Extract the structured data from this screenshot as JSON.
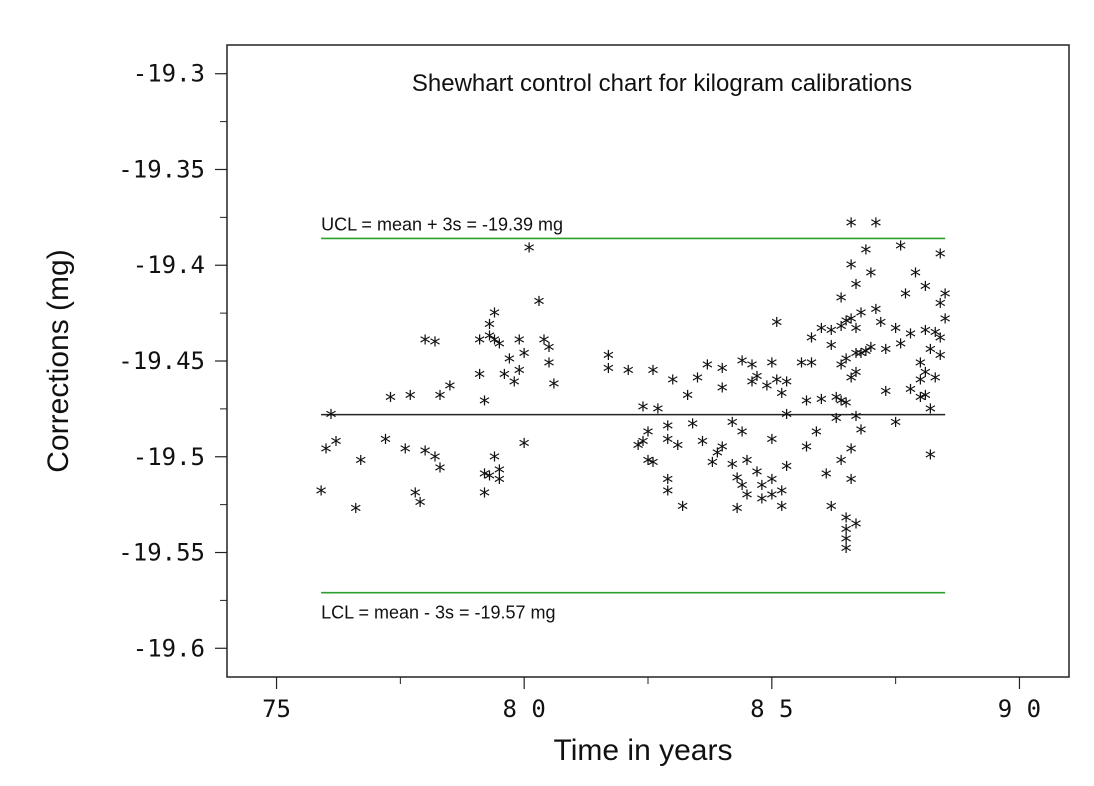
{
  "chart_data": {
    "type": "scatter",
    "title": "Shewhart control chart for kilogram calibrations",
    "xlabel": "Time in years",
    "ylabel": "Corrections (mg)",
    "xlim": [
      74,
      91
    ],
    "ylim": [
      -19.615,
      -19.285
    ],
    "x_ticks": [
      75,
      80,
      85,
      90
    ],
    "x_tick_labels": [
      "75",
      "8 0",
      "8 5",
      "9 0"
    ],
    "y_ticks": [
      -19.3,
      -19.35,
      -19.4,
      -19.45,
      -19.5,
      -19.55,
      -19.6
    ],
    "y_tick_labels": [
      "-19.3",
      "-19.35",
      "-19.4",
      "-19.45",
      "-19.5",
      "-19.55",
      "-19.6"
    ],
    "grid": false,
    "marker": "*",
    "colors": {
      "limits": "#2ca02c",
      "center": "#222222",
      "points": "#111111",
      "frame": "#222222"
    },
    "lines": [
      {
        "name": "UCL",
        "label": "UCL = mean + 3s = -19.39 mg",
        "y": -19.386,
        "x": [
          75.9,
          88.5
        ]
      },
      {
        "name": "center",
        "label": "",
        "y": -19.478,
        "x": [
          75.9,
          88.5
        ]
      },
      {
        "name": "LCL",
        "label": "LCL = mean - 3s = -19.57 mg",
        "y": -19.571,
        "x": [
          75.9,
          88.5
        ]
      }
    ],
    "points": [
      [
        75.9,
        -19.518
      ],
      [
        76.0,
        -19.496
      ],
      [
        76.1,
        -19.478
      ],
      [
        76.2,
        -19.492
      ],
      [
        76.6,
        -19.527
      ],
      [
        76.7,
        -19.502
      ],
      [
        77.2,
        -19.491
      ],
      [
        77.3,
        -19.469
      ],
      [
        77.6,
        -19.496
      ],
      [
        77.7,
        -19.468
      ],
      [
        77.8,
        -19.519
      ],
      [
        77.9,
        -19.524
      ],
      [
        78.0,
        -19.439
      ],
      [
        78.0,
        -19.497
      ],
      [
        78.2,
        -19.5
      ],
      [
        78.2,
        -19.44
      ],
      [
        78.3,
        -19.506
      ],
      [
        78.3,
        -19.468
      ],
      [
        78.5,
        -19.463
      ],
      [
        79.1,
        -19.439
      ],
      [
        79.1,
        -19.457
      ],
      [
        79.2,
        -19.471
      ],
      [
        79.2,
        -19.509
      ],
      [
        79.2,
        -19.519
      ],
      [
        79.3,
        -19.431
      ],
      [
        79.3,
        -19.437
      ],
      [
        79.3,
        -19.51
      ],
      [
        79.4,
        -19.425
      ],
      [
        79.4,
        -19.439
      ],
      [
        79.4,
        -19.5
      ],
      [
        79.5,
        -19.441
      ],
      [
        79.5,
        -19.507
      ],
      [
        79.5,
        -19.512
      ],
      [
        79.6,
        -19.457
      ],
      [
        79.7,
        -19.449
      ],
      [
        79.8,
        -19.461
      ],
      [
        79.9,
        -19.455
      ],
      [
        79.9,
        -19.439
      ],
      [
        80.0,
        -19.493
      ],
      [
        80.0,
        -19.446
      ],
      [
        80.1,
        -19.391
      ],
      [
        80.3,
        -19.419
      ],
      [
        80.4,
        -19.439
      ],
      [
        80.5,
        -19.443
      ],
      [
        80.5,
        -19.451
      ],
      [
        80.6,
        -19.462
      ],
      [
        81.7,
        -19.447
      ],
      [
        81.7,
        -19.454
      ],
      [
        82.1,
        -19.455
      ],
      [
        82.3,
        -19.494
      ],
      [
        82.4,
        -19.474
      ],
      [
        82.4,
        -19.492
      ],
      [
        82.5,
        -19.487
      ],
      [
        82.5,
        -19.502
      ],
      [
        82.6,
        -19.503
      ],
      [
        82.6,
        -19.455
      ],
      [
        82.7,
        -19.475
      ],
      [
        82.9,
        -19.484
      ],
      [
        82.9,
        -19.491
      ],
      [
        82.9,
        -19.512
      ],
      [
        82.9,
        -19.518
      ],
      [
        83.0,
        -19.46
      ],
      [
        83.1,
        -19.494
      ],
      [
        83.2,
        -19.526
      ],
      [
        83.3,
        -19.468
      ],
      [
        83.4,
        -19.483
      ],
      [
        83.5,
        -19.459
      ],
      [
        83.6,
        -19.492
      ],
      [
        83.7,
        -19.452
      ],
      [
        83.8,
        -19.503
      ],
      [
        83.9,
        -19.498
      ],
      [
        84.0,
        -19.464
      ],
      [
        84.0,
        -19.495
      ],
      [
        84.0,
        -19.454
      ],
      [
        84.2,
        -19.482
      ],
      [
        84.2,
        -19.504
      ],
      [
        84.3,
        -19.511
      ],
      [
        84.3,
        -19.527
      ],
      [
        84.4,
        -19.515
      ],
      [
        84.4,
        -19.487
      ],
      [
        84.4,
        -19.45
      ],
      [
        84.5,
        -19.502
      ],
      [
        84.5,
        -19.52
      ],
      [
        84.6,
        -19.452
      ],
      [
        84.6,
        -19.461
      ],
      [
        84.7,
        -19.508
      ],
      [
        84.7,
        -19.458
      ],
      [
        84.8,
        -19.515
      ],
      [
        84.8,
        -19.522
      ],
      [
        84.9,
        -19.463
      ],
      [
        85.0,
        -19.451
      ],
      [
        85.0,
        -19.512
      ],
      [
        85.0,
        -19.52
      ],
      [
        85.0,
        -19.491
      ],
      [
        85.1,
        -19.43
      ],
      [
        85.1,
        -19.46
      ],
      [
        85.2,
        -19.467
      ],
      [
        85.2,
        -19.526
      ],
      [
        85.2,
        -19.518
      ],
      [
        85.3,
        -19.505
      ],
      [
        85.3,
        -19.478
      ],
      [
        85.3,
        -19.461
      ],
      [
        85.6,
        -19.451
      ],
      [
        85.7,
        -19.495
      ],
      [
        85.7,
        -19.471
      ],
      [
        85.8,
        -19.438
      ],
      [
        85.8,
        -19.451
      ],
      [
        85.9,
        -19.487
      ],
      [
        86.0,
        -19.433
      ],
      [
        86.0,
        -19.47
      ],
      [
        86.1,
        -19.509
      ],
      [
        86.2,
        -19.434
      ],
      [
        86.2,
        -19.442
      ],
      [
        86.2,
        -19.526
      ],
      [
        86.3,
        -19.469
      ],
      [
        86.3,
        -19.48
      ],
      [
        86.4,
        -19.471
      ],
      [
        86.4,
        -19.417
      ],
      [
        86.4,
        -19.432
      ],
      [
        86.4,
        -19.452
      ],
      [
        86.4,
        -19.502
      ],
      [
        86.5,
        -19.429
      ],
      [
        86.5,
        -19.449
      ],
      [
        86.5,
        -19.472
      ],
      [
        86.5,
        -19.532
      ],
      [
        86.5,
        -19.538
      ],
      [
        86.5,
        -19.543
      ],
      [
        86.5,
        -19.548
      ],
      [
        86.6,
        -19.378
      ],
      [
        86.6,
        -19.4
      ],
      [
        86.6,
        -19.428
      ],
      [
        86.6,
        -19.459
      ],
      [
        86.6,
        -19.496
      ],
      [
        86.6,
        -19.512
      ],
      [
        86.7,
        -19.41
      ],
      [
        86.7,
        -19.433
      ],
      [
        86.7,
        -19.446
      ],
      [
        86.7,
        -19.456
      ],
      [
        86.7,
        -19.479
      ],
      [
        86.7,
        -19.535
      ],
      [
        86.8,
        -19.425
      ],
      [
        86.8,
        -19.446
      ],
      [
        86.8,
        -19.486
      ],
      [
        86.9,
        -19.392
      ],
      [
        86.9,
        -19.445
      ],
      [
        87.0,
        -19.404
      ],
      [
        87.0,
        -19.443
      ],
      [
        87.1,
        -19.378
      ],
      [
        87.1,
        -19.423
      ],
      [
        87.2,
        -19.43
      ],
      [
        87.3,
        -19.466
      ],
      [
        87.3,
        -19.444
      ],
      [
        87.5,
        -19.482
      ],
      [
        87.5,
        -19.433
      ],
      [
        87.6,
        -19.39
      ],
      [
        87.6,
        -19.441
      ],
      [
        87.7,
        -19.415
      ],
      [
        87.8,
        -19.436
      ],
      [
        87.8,
        -19.465
      ],
      [
        87.9,
        -19.404
      ],
      [
        88.0,
        -19.451
      ],
      [
        88.0,
        -19.469
      ],
      [
        88.0,
        -19.46
      ],
      [
        88.1,
        -19.411
      ],
      [
        88.1,
        -19.434
      ],
      [
        88.1,
        -19.456
      ],
      [
        88.1,
        -19.468
      ],
      [
        88.2,
        -19.444
      ],
      [
        88.2,
        -19.475
      ],
      [
        88.2,
        -19.499
      ],
      [
        88.3,
        -19.435
      ],
      [
        88.3,
        -19.459
      ],
      [
        88.4,
        -19.42
      ],
      [
        88.4,
        -19.394
      ],
      [
        88.4,
        -19.438
      ],
      [
        88.4,
        -19.447
      ],
      [
        88.5,
        -19.428
      ],
      [
        88.5,
        -19.415
      ]
    ]
  }
}
